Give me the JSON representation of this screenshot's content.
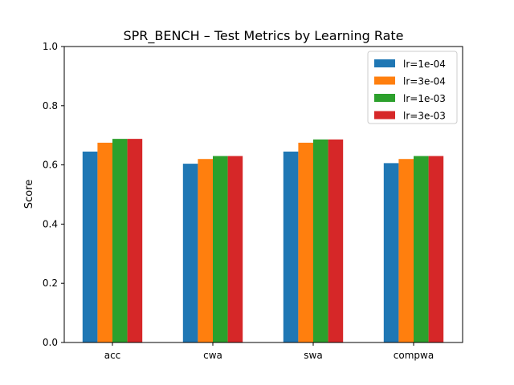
{
  "chart_data": {
    "type": "bar",
    "title": "SPR_BENCH – Test Metrics by Learning Rate",
    "xlabel": "",
    "ylabel": "Score",
    "ylim": [
      0,
      1.0
    ],
    "yticks": [
      "0.0",
      "0.2",
      "0.4",
      "0.6",
      "0.8",
      "1.0"
    ],
    "categories": [
      "acc",
      "cwa",
      "swa",
      "compwa"
    ],
    "series": [
      {
        "name": "lr=1e-04",
        "color": "#1f77b4",
        "values": [
          0.645,
          0.604,
          0.645,
          0.606
        ]
      },
      {
        "name": "lr=3e-04",
        "color": "#ff7f0e",
        "values": [
          0.675,
          0.62,
          0.675,
          0.62
        ]
      },
      {
        "name": "lr=1e-03",
        "color": "#2ca02c",
        "values": [
          0.688,
          0.63,
          0.686,
          0.63
        ]
      },
      {
        "name": "lr=3e-03",
        "color": "#d62728",
        "values": [
          0.688,
          0.63,
          0.686,
          0.63
        ]
      }
    ],
    "grid": false,
    "legend_position": "top-right"
  }
}
